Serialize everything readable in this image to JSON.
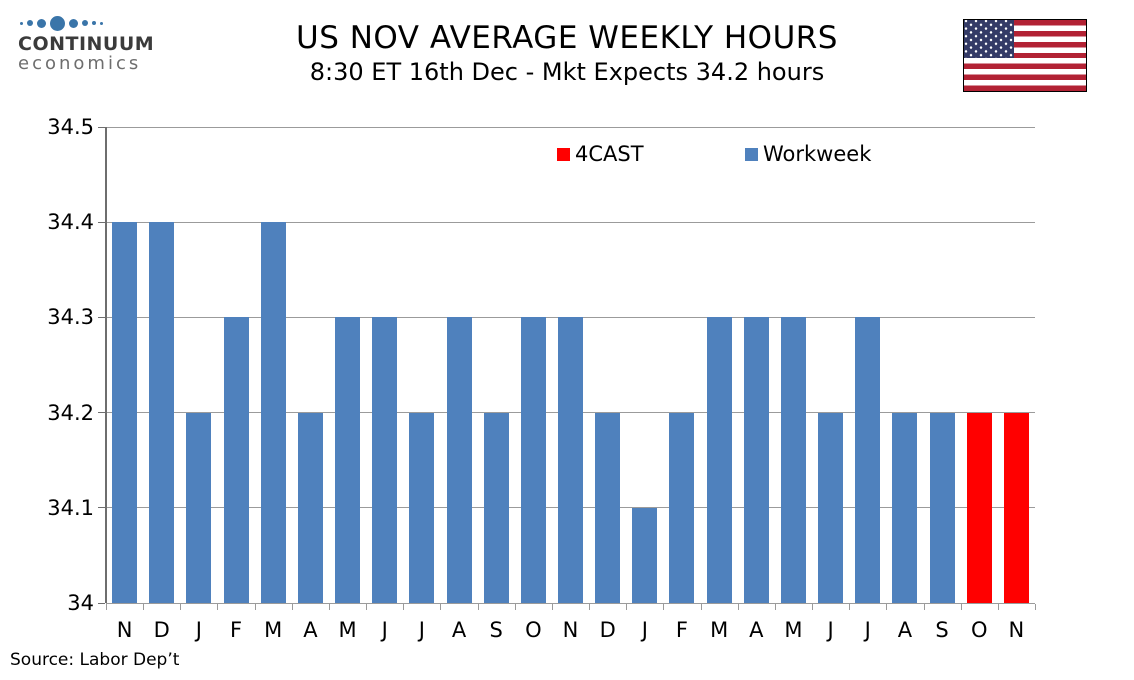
{
  "header": {
    "logo": {
      "brand": "CONTINUUM",
      "sub": "economics",
      "icon": "continuum-dots-icon",
      "dot_color": "#3a75a9"
    },
    "title": "US NOV AVERAGE WEEKLY HOURS",
    "subtitle": "8:30 ET 16th Dec - Mkt Expects 34.2 hours",
    "flag_icon": "us-flag-icon"
  },
  "chart_data": {
    "type": "bar",
    "title": "US NOV AVERAGE WEEKLY HOURS",
    "xlabel": "",
    "ylabel": "",
    "categories": [
      "N",
      "D",
      "J",
      "F",
      "M",
      "A",
      "M",
      "J",
      "J",
      "A",
      "S",
      "O",
      "N",
      "D",
      "J",
      "F",
      "M",
      "A",
      "M",
      "J",
      "J",
      "A",
      "S",
      "O",
      "N"
    ],
    "series": [
      {
        "name": "4CAST",
        "color": "#ff0000",
        "values": [
          null,
          null,
          null,
          null,
          null,
          null,
          null,
          null,
          null,
          null,
          null,
          null,
          null,
          null,
          null,
          null,
          null,
          null,
          null,
          null,
          null,
          null,
          null,
          34.2,
          34.2
        ]
      },
      {
        "name": "Workweek",
        "color": "#4f81bd",
        "values": [
          34.4,
          34.4,
          34.2,
          34.3,
          34.4,
          34.2,
          34.3,
          34.3,
          34.2,
          34.3,
          34.2,
          34.3,
          34.3,
          34.2,
          34.1,
          34.2,
          34.3,
          34.3,
          34.3,
          34.2,
          34.3,
          34.2,
          34.2,
          null,
          null
        ]
      }
    ],
    "ylim": [
      34,
      34.5
    ],
    "ytick_labels": [
      "34",
      "34.1",
      "34.2",
      "34.3",
      "34.4",
      "34.5"
    ],
    "grid": true,
    "legend_position": "top-center",
    "gridline_color": "#9b9b9b"
  },
  "source": "Source: Labor Dep’t"
}
